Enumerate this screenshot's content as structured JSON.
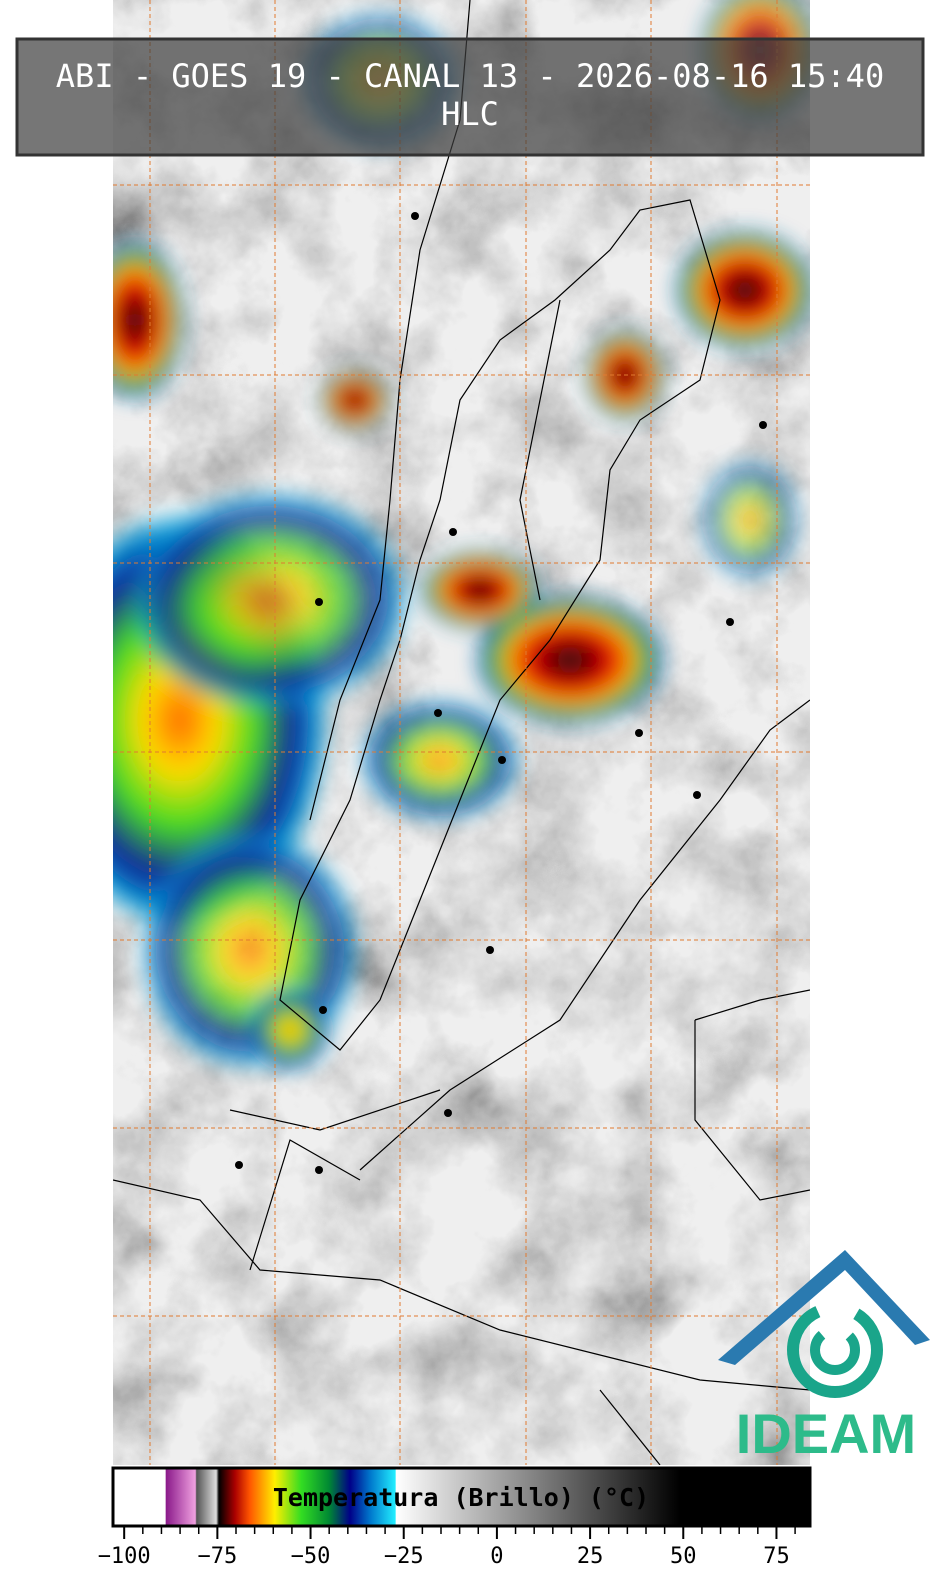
{
  "header": {
    "title": "ABI - GOES 19 - CANAL 13 - 2026-08-16 15:40",
    "subtitle": "HLC"
  },
  "logo": {
    "text": "IDEAM"
  },
  "colorbar": {
    "label": "Temperatura (Brillo) (°C)",
    "lim": [
      -103,
      84
    ],
    "ticks": [
      {
        "value": -100,
        "label": "−100"
      },
      {
        "value": -75,
        "label": "−75"
      },
      {
        "value": -50,
        "label": "−50"
      },
      {
        "value": -25,
        "label": "−25"
      },
      0,
      25,
      50,
      75
    ]
  }
}
